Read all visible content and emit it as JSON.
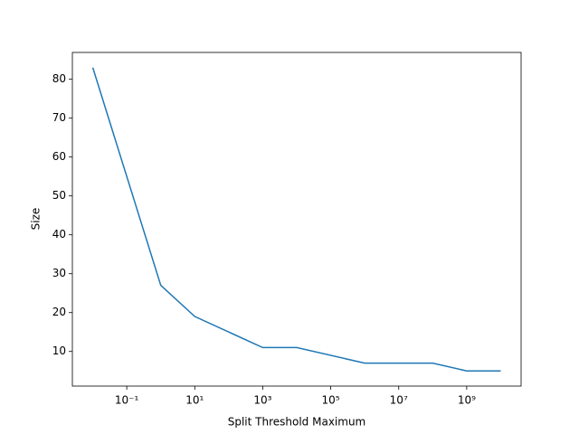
{
  "chart_data": {
    "type": "line",
    "xlabel": "Split Threshold Maximum",
    "ylabel": "Size",
    "x": [
      0.01,
      1,
      10,
      1000,
      10000,
      1000000,
      100000000,
      1000000000,
      10000000000
    ],
    "series": [
      {
        "color": "#1f77b4",
        "values": [
          83,
          27,
          19,
          11,
          11,
          7,
          7,
          5,
          5
        ]
      }
    ],
    "xscale": "log",
    "xlim": [
      0.00251,
      39800000000
    ],
    "xticks": [
      {
        "value": 0.1,
        "label": "10⁻¹"
      },
      {
        "value": 10,
        "label": "10¹"
      },
      {
        "value": 1000,
        "label": "10³"
      },
      {
        "value": 100000,
        "label": "10⁵"
      },
      {
        "value": 10000000,
        "label": "10⁷"
      },
      {
        "value": 1000000000,
        "label": "10⁹"
      }
    ],
    "ylim": [
      1.1,
      86.9
    ],
    "yticks": [
      10,
      20,
      30,
      40,
      50,
      60,
      70,
      80
    ]
  }
}
